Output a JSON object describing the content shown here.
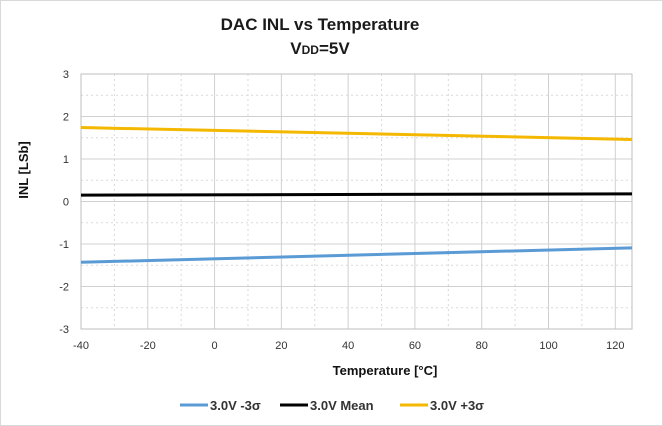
{
  "chart_data": {
    "type": "line",
    "title": "DAC INL vs Temperature",
    "subtitle": "VDD=5V",
    "subtitle_main": "V",
    "subtitle_sub": "DD",
    "subtitle_rest": "=5V",
    "xlabel": "Temperature [°C]",
    "ylabel": "INL [LSb]",
    "xlim": [
      -40,
      125
    ],
    "ylim": [
      -3,
      3
    ],
    "x_ticks": [
      -40,
      -20,
      0,
      20,
      40,
      60,
      80,
      100,
      120
    ],
    "y_ticks": [
      -3,
      -2,
      -1,
      0,
      1,
      2,
      3
    ],
    "grid": true,
    "legend_position": "bottom",
    "series": [
      {
        "name": "3.0V -3σ",
        "color": "#5b9bd5",
        "x": [
          -40,
          125
        ],
        "y": [
          -1.43,
          -1.09
        ]
      },
      {
        "name": "3.0V Mean",
        "color": "#000000",
        "x": [
          -40,
          125
        ],
        "y": [
          0.15,
          0.18
        ]
      },
      {
        "name": "3.0V +3σ",
        "color": "#f5b800",
        "x": [
          -40,
          125
        ],
        "y": [
          1.74,
          1.46
        ]
      }
    ]
  }
}
